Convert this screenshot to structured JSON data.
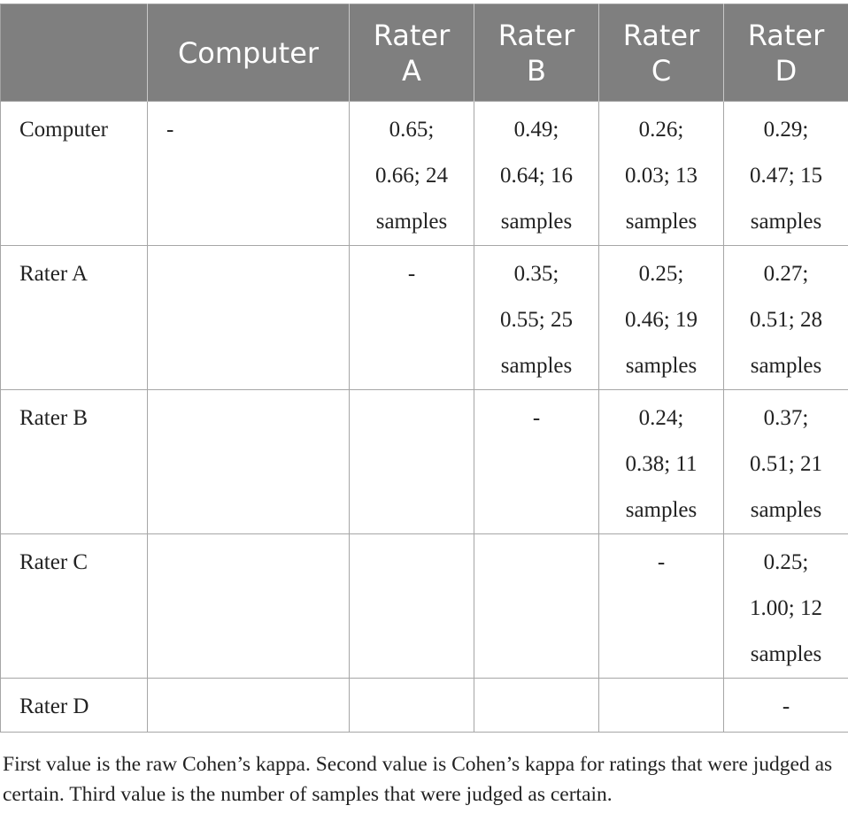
{
  "table": {
    "header": [
      "",
      "Computer",
      "Rater\nA",
      "Rater\nB",
      "Rater\nC",
      "Rater\nD"
    ],
    "rows": [
      {
        "label": "Computer",
        "cells": [
          "-",
          "0.65;\n0.66; 24\nsamples",
          "0.49;\n0.64; 16\nsamples",
          "0.26;\n0.03; 13\nsamples",
          "0.29;\n0.47; 15\nsamples"
        ]
      },
      {
        "label": "Rater A",
        "cells": [
          "",
          "-",
          "0.35;\n0.55; 25\nsamples",
          "0.25;\n0.46; 19\nsamples",
          "0.27;\n0.51; 28\nsamples"
        ]
      },
      {
        "label": "Rater B",
        "cells": [
          "",
          "",
          "-",
          "0.24;\n0.38; 11\nsamples",
          "0.37;\n0.51; 21\nsamples"
        ]
      },
      {
        "label": "Rater C",
        "cells": [
          "",
          "",
          "",
          "-",
          "0.25;\n1.00; 12\nsamples"
        ]
      },
      {
        "label": "Rater D",
        "cells": [
          "",
          "",
          "",
          "",
          "-"
        ]
      }
    ]
  },
  "footnote": "First value is the raw Cohen’s kappa. Second value is Cohen’s kappa for ratings that were judged as certain. Third value is the number of samples that were judged as certain.",
  "colors": {
    "header_bg": "#7f7f7f",
    "header_text": "#ffffff",
    "body_text": "#222222",
    "border": "#a6a6a6"
  }
}
